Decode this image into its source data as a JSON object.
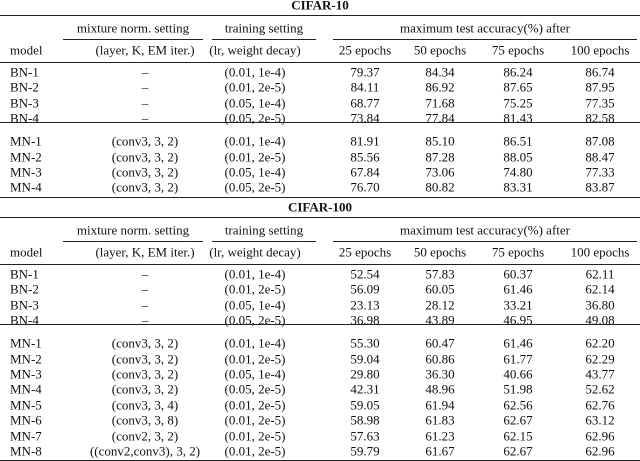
{
  "tables": [
    {
      "title": "CIFAR-10",
      "group_headers": [
        "mixture norm. setting",
        "training setting",
        "maximum test accuracy(%) after"
      ],
      "headers": [
        "model",
        "(layer, K, EM iter.)",
        "(lr, weight decay)",
        "25 epochs",
        "50 epochs",
        "75 epochs",
        "100 epochs"
      ],
      "groups": [
        [
          [
            "BN-1",
            "–",
            "(0.01, 1e-4)",
            "79.37",
            "84.34",
            "86.24",
            "86.74"
          ],
          [
            "BN-2",
            "–",
            "(0.01, 2e-5)",
            "84.11",
            "86.92",
            "87.65",
            "87.95"
          ],
          [
            "BN-3",
            "–",
            "(0.05, 1e-4)",
            "68.77",
            "71.68",
            "75.25",
            "77.35"
          ],
          [
            "BN-4",
            "–",
            "(0.05, 2e-5)",
            "73.84",
            "77.84",
            "81.43",
            "82.58"
          ]
        ],
        [
          [
            "MN-1",
            "(conv3, 3, 2)",
            "(0.01, 1e-4)",
            "81.91",
            "85.10",
            "86.51",
            "87.08"
          ],
          [
            "MN-2",
            "(conv3, 3, 2)",
            "(0.01, 2e-5)",
            "85.56",
            "87.28",
            "88.05",
            "88.47"
          ],
          [
            "MN-3",
            "(conv3, 3, 2)",
            "(0.05, 1e-4)",
            "67.84",
            "73.06",
            "74.80",
            "77.33"
          ],
          [
            "MN-4",
            "(conv3, 3, 2)",
            "(0.05, 2e-5)",
            "76.70",
            "80.82",
            "83.31",
            "83.87"
          ]
        ]
      ]
    },
    {
      "title": "CIFAR-100",
      "group_headers": [
        "mixture norm. setting",
        "training setting",
        "maximum test accuracy(%) after"
      ],
      "headers": [
        "model",
        "(layer, K, EM iter.)",
        "(lr, weight decay)",
        "25 epochs",
        "50 epochs",
        "75 epochs",
        "100 epochs"
      ],
      "groups": [
        [
          [
            "BN-1",
            "–",
            "(0.01, 1e-4)",
            "52.54",
            "57.83",
            "60.37",
            "62.11"
          ],
          [
            "BN-2",
            "–",
            "(0.01, 2e-5)",
            "56.09",
            "60.05",
            "61.46",
            "62.14"
          ],
          [
            "BN-3",
            "–",
            "(0.05, 1e-4)",
            "23.13",
            "28.12",
            "33.21",
            "36.80"
          ],
          [
            "BN-4",
            "–",
            "(0.05, 2e-5)",
            "36.98",
            "43.89",
            "46.95",
            "49.08"
          ]
        ],
        [
          [
            "MN-1",
            "(conv3, 3, 2)",
            "(0.01, 1e-4)",
            "55.30",
            "60.47",
            "61.46",
            "62.20"
          ],
          [
            "MN-2",
            "(conv3, 3, 2)",
            "(0.01, 2e-5)",
            "59.04",
            "60.86",
            "61.77",
            "62.29"
          ],
          [
            "MN-3",
            "(conv3, 3, 2)",
            "(0.05, 1e-4)",
            "29.80",
            "36.30",
            "40.66",
            "43.77"
          ],
          [
            "MN-4",
            "(conv3, 3, 2)",
            "(0.05, 2e-5)",
            "42.31",
            "48.96",
            "51.98",
            "52.62"
          ],
          [
            "MN-5",
            "(conv3, 3, 4)",
            "(0.01, 2e-5)",
            "59.05",
            "61.94",
            "62.56",
            "62.76"
          ],
          [
            "MN-6",
            "(conv3, 3, 8)",
            "(0.01, 2e-5)",
            "58.98",
            "61.83",
            "62.67",
            "63.12"
          ],
          [
            "MN-7",
            "(conv2, 3, 2)",
            "(0.01, 2e-5)",
            "57.63",
            "61.23",
            "62.15",
            "62.96"
          ],
          [
            "MN-8",
            "((conv2,conv3), 3, 2)",
            "(0.01, 2e-5)",
            "59.79",
            "61.67",
            "62.67",
            "62.96"
          ]
        ]
      ]
    }
  ]
}
